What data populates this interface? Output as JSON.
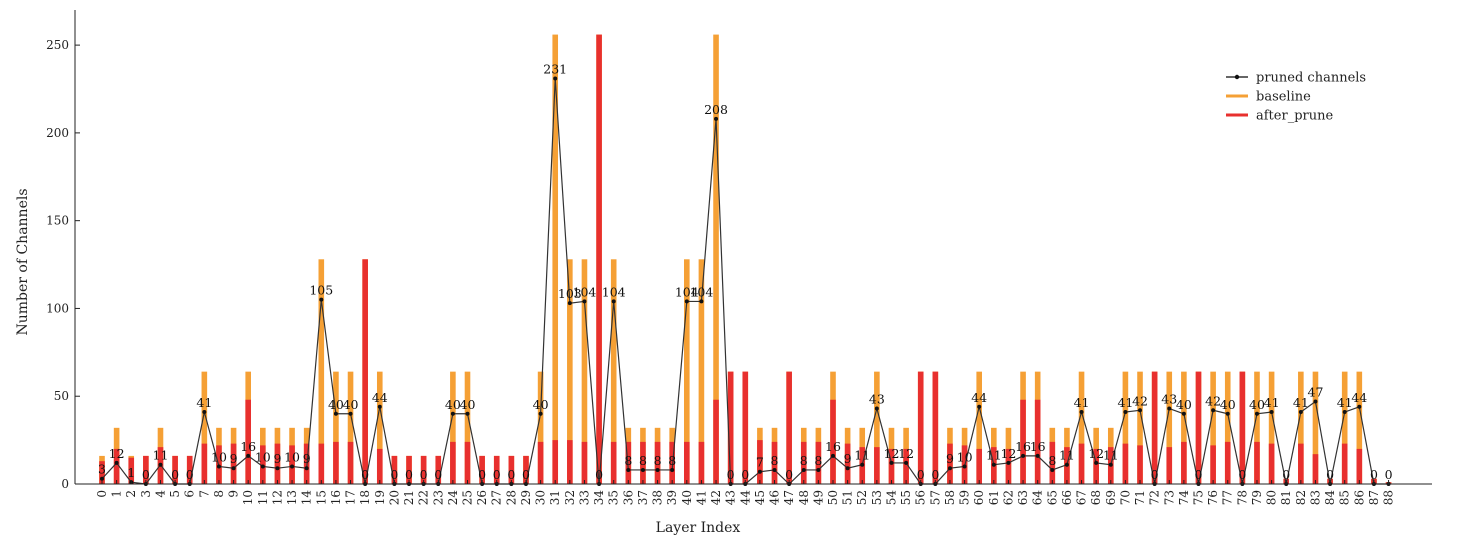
{
  "chart_data": {
    "type": "bar",
    "xlabel": "Layer Index",
    "ylabel": "Number of Channels",
    "ylim": [
      0,
      270
    ],
    "yticks": [
      0,
      50,
      100,
      150,
      200,
      250
    ],
    "grid": false,
    "legend_position": "top-right",
    "categories": [
      "0",
      "1",
      "2",
      "3",
      "4",
      "5",
      "6",
      "7",
      "8",
      "9",
      "10",
      "11",
      "12",
      "13",
      "14",
      "15",
      "16",
      "17",
      "18",
      "19",
      "20",
      "21",
      "22",
      "23",
      "24",
      "25",
      "26",
      "27",
      "28",
      "29",
      "30",
      "31",
      "32",
      "33",
      "34",
      "35",
      "36",
      "37",
      "38",
      "39",
      "40",
      "41",
      "42",
      "43",
      "44",
      "45",
      "46",
      "47",
      "48",
      "49",
      "50",
      "51",
      "52",
      "53",
      "54",
      "55",
      "56",
      "57",
      "58",
      "59",
      "60",
      "61",
      "62",
      "63",
      "64",
      "65",
      "66",
      "67",
      "68",
      "69",
      "70",
      "71",
      "72",
      "73",
      "74",
      "75",
      "76",
      "77",
      "78",
      "79",
      "80",
      "81",
      "82",
      "83",
      "84",
      "85",
      "86",
      "87",
      "88"
    ],
    "series": [
      {
        "name": "baseline",
        "type": "bar",
        "color": "#F5A035",
        "values": [
          16,
          32,
          16,
          16,
          32,
          16,
          16,
          64,
          32,
          32,
          64,
          32,
          32,
          32,
          32,
          128,
          64,
          64,
          128,
          64,
          16,
          16,
          16,
          16,
          64,
          64,
          16,
          16,
          16,
          16,
          64,
          256,
          128,
          128,
          256,
          128,
          32,
          32,
          32,
          32,
          128,
          128,
          256,
          64,
          64,
          32,
          32,
          64,
          32,
          32,
          64,
          32,
          32,
          64,
          32,
          32,
          64,
          64,
          32,
          32,
          64,
          32,
          32,
          64,
          64,
          32,
          32,
          64,
          32,
          32,
          64,
          64,
          64,
          64,
          64,
          64,
          64,
          64,
          64,
          64,
          64,
          3,
          64,
          64,
          3,
          64,
          64,
          3,
          1
        ]
      },
      {
        "name": "after_prune",
        "type": "bar",
        "color": "#E8302E",
        "values": [
          13,
          20,
          15,
          16,
          21,
          16,
          16,
          23,
          22,
          23,
          48,
          22,
          23,
          22,
          23,
          23,
          24,
          24,
          128,
          20,
          16,
          16,
          16,
          16,
          24,
          24,
          16,
          16,
          16,
          16,
          24,
          25,
          25,
          24,
          256,
          24,
          24,
          24,
          24,
          24,
          24,
          24,
          48,
          64,
          64,
          25,
          24,
          64,
          24,
          24,
          48,
          23,
          21,
          21,
          20,
          20,
          64,
          64,
          23,
          22,
          20,
          21,
          20,
          48,
          48,
          24,
          21,
          23,
          20,
          21,
          23,
          22,
          64,
          21,
          24,
          64,
          22,
          24,
          64,
          24,
          23,
          3,
          23,
          17,
          3,
          23,
          20,
          3,
          1
        ]
      },
      {
        "name": "pruned channels",
        "type": "line",
        "color": "#333333",
        "values": [
          3,
          12,
          1,
          0,
          11,
          0,
          0,
          41,
          10,
          9,
          16,
          10,
          9,
          10,
          9,
          105,
          40,
          40,
          0,
          44,
          0,
          0,
          0,
          0,
          40,
          40,
          0,
          0,
          0,
          0,
          40,
          231,
          103,
          104,
          0,
          104,
          8,
          8,
          8,
          8,
          104,
          104,
          208,
          0,
          0,
          7,
          8,
          0,
          8,
          8,
          16,
          9,
          11,
          43,
          12,
          12,
          0,
          0,
          9,
          10,
          44,
          11,
          12,
          16,
          16,
          8,
          11,
          41,
          12,
          11,
          41,
          42,
          0,
          43,
          40,
          0,
          42,
          40,
          0,
          40,
          41,
          0,
          41,
          47,
          0,
          41,
          44,
          0,
          0
        ],
        "labels": [
          "3",
          "12",
          "1",
          "0",
          "11",
          "0",
          "0",
          "41",
          "10",
          "9",
          "16",
          "10",
          "9",
          "10",
          "9",
          "105",
          "40",
          "40",
          "0",
          "44",
          "0",
          "0",
          "0",
          "0",
          "40",
          "40",
          "0",
          "0",
          "0",
          "0",
          "40",
          "231",
          "103",
          "104",
          "0",
          "104",
          "8",
          "8",
          "8",
          "8",
          "104",
          "104",
          "208",
          "0",
          "0",
          "7",
          "8",
          "0",
          "8",
          "8",
          "16",
          "9",
          "11",
          "43",
          "12",
          "12",
          "0",
          "0",
          "9",
          "10",
          "44",
          "11",
          "12",
          "16",
          "16",
          "8",
          "11",
          "41",
          "12",
          "11",
          "41",
          "42",
          "0",
          "43",
          "40",
          "0",
          "42",
          "40",
          "0",
          "40",
          "41",
          "0",
          "41",
          "47",
          "0",
          "41",
          "44",
          "0",
          "0"
        ]
      }
    ]
  }
}
